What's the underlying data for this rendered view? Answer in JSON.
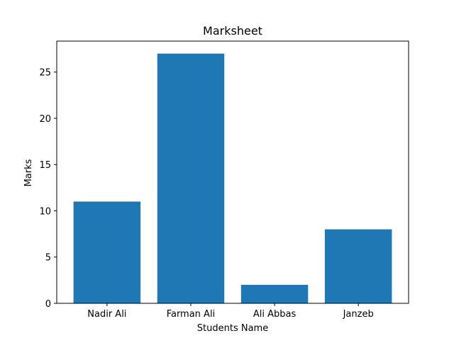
{
  "chart_data": {
    "type": "bar",
    "title": "Marksheet",
    "xlabel": "Students Name",
    "ylabel": "Marks",
    "categories": [
      "Nadir Ali",
      "Farman Ali",
      "Ali Abbas",
      "Janzeb"
    ],
    "values": [
      11,
      27,
      2,
      8
    ],
    "ylim": [
      0,
      28.35
    ],
    "yticks": [
      0,
      5,
      10,
      15,
      20,
      25
    ],
    "grid": false,
    "legend": "none",
    "bar_color": "#1f77b4"
  }
}
